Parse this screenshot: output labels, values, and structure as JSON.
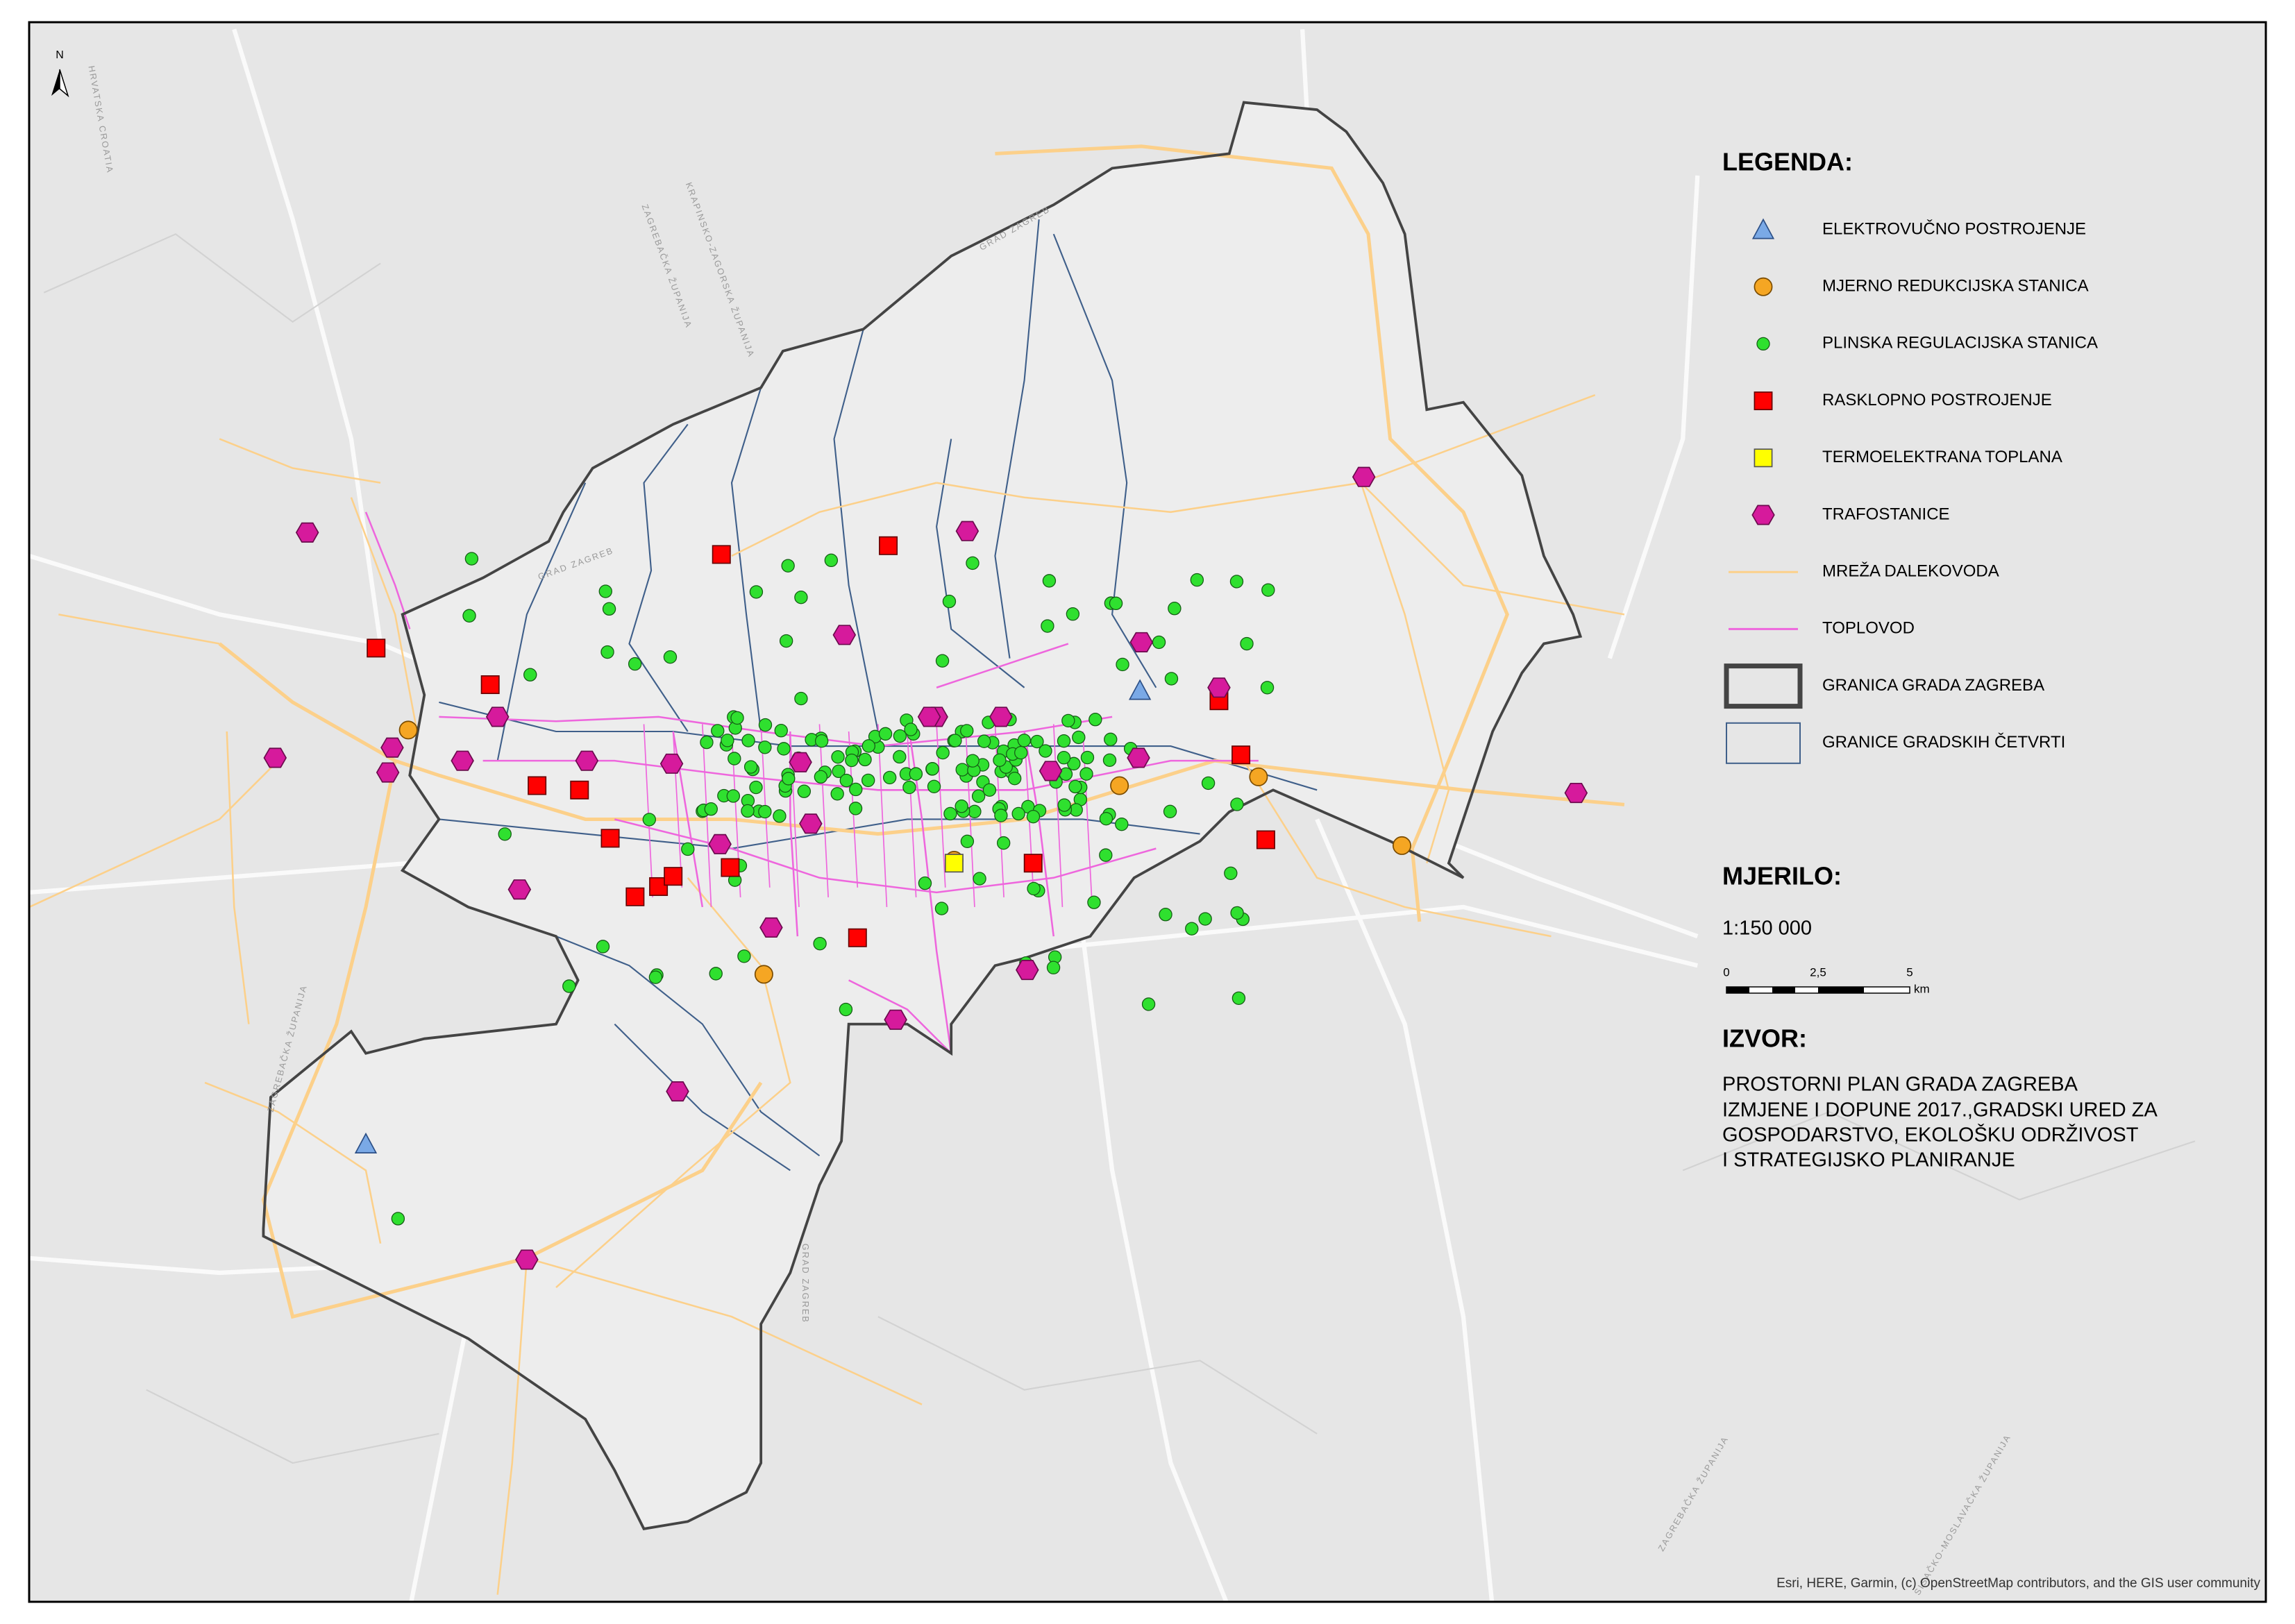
{
  "north_arrow": "N",
  "legend": {
    "title": "LEGENDA:",
    "items": [
      "ELEKTROVUČNO POSTROJENJE",
      "MJERNO REDUKCIJSKA STANICA",
      "PLINSKA REGULACIJSKA STANICA",
      "RASKLOPNO POSTROJENJE",
      "TERMOELEKTRANA TOPLANA",
      "TRAFOSTANICE",
      "MREŽA DALEKOVODA",
      "TOPLOVOD",
      "GRANICA GRADA ZAGREBA",
      "GRANICE GRADSKIH ČETVRTI"
    ]
  },
  "scale": {
    "title": "MJERILO:",
    "ratio": "1:150 000",
    "ticks": [
      "0",
      "2,5",
      "5"
    ],
    "unit": "km"
  },
  "source": {
    "title": "IZVOR:",
    "lines": [
      "PROSTORNI PLAN GRADA ZAGREBA",
      "IZMJENE I DOPUNE 2017.,GRADSKI URED ZA",
      "GOSPODARSTVO, EKOLOŠKU ODRŽIVOST",
      "I STRATEGIJSKO PLANIRANJE"
    ]
  },
  "attribution": "Esri, HERE, Garmin, (c) OpenStreetMap contributors, and the GIS user community",
  "map_labels": [
    "HRVATSKA CROATIA",
    "KRAPINSKO-ZAGORSKA ŽUPANIJA",
    "ZAGREBAČKA ŽUPANIJA",
    "GRAD ZAGREB",
    "GRAD ZAGREB",
    "GRAD ZAGREB",
    "ZAGREBAČKA ŽUPANIJA",
    "SISAČKO-MOSLAVAČKA ŽUPANIJA",
    "ZAGREBAČKA ŽUPANIJA"
  ]
}
